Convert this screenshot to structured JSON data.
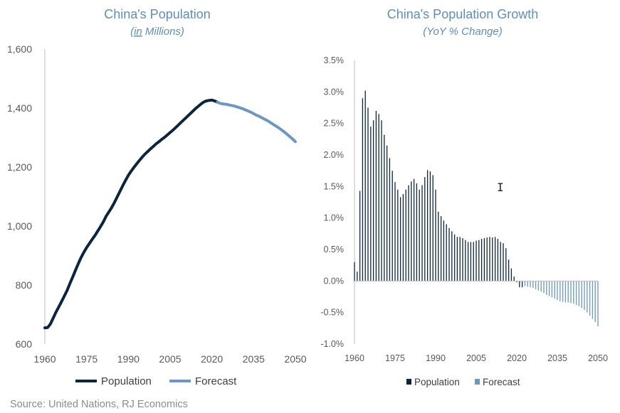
{
  "colors": {
    "population": "#0b2540",
    "forecast": "#6a97c4",
    "title": "#5b8fc0"
  },
  "source": "Source: United Nations, RJ Economics",
  "chart_data": [
    {
      "type": "line",
      "title": "China's Population",
      "subtitle_prefix": "(",
      "subtitle_underlined": "in",
      "subtitle_suffix": " Millions)",
      "xlabel": "",
      "ylabel": "",
      "xlim": [
        1960,
        2050
      ],
      "ylim": [
        600,
        1600
      ],
      "x_ticks": [
        "1960",
        "1975",
        "1990",
        "2005",
        "2020",
        "2035",
        "2050"
      ],
      "y_ticks": [
        "600",
        "800",
        "1,000",
        "1,200",
        "1,400",
        "1,600"
      ],
      "legend": [
        "Population",
        "Forecast"
      ],
      "legend_position": "bottom",
      "grid": false,
      "series": [
        {
          "name": "Population",
          "x": [
            1960,
            1961,
            1962,
            1963,
            1964,
            1965,
            1966,
            1967,
            1968,
            1969,
            1970,
            1971,
            1972,
            1973,
            1974,
            1975,
            1976,
            1977,
            1978,
            1979,
            1980,
            1981,
            1982,
            1983,
            1984,
            1985,
            1986,
            1987,
            1988,
            1989,
            1990,
            1991,
            1992,
            1993,
            1994,
            1995,
            1996,
            1997,
            1998,
            1999,
            2000,
            2001,
            2002,
            2003,
            2004,
            2005,
            2006,
            2007,
            2008,
            2009,
            2010,
            2011,
            2012,
            2013,
            2014,
            2015,
            2016,
            2017,
            2018,
            2019,
            2020,
            2021,
            2022
          ],
          "y": [
            655,
            656,
            668,
            688,
            708,
            726,
            744,
            763,
            782,
            805,
            827,
            850,
            872,
            893,
            911,
            927,
            941,
            955,
            968,
            983,
            998,
            1014,
            1033,
            1048,
            1063,
            1080,
            1099,
            1118,
            1137,
            1155,
            1172,
            1186,
            1199,
            1211,
            1223,
            1234,
            1244,
            1253,
            1262,
            1270,
            1279,
            1286,
            1294,
            1301,
            1309,
            1317,
            1325,
            1334,
            1343,
            1352,
            1361,
            1370,
            1379,
            1388,
            1397,
            1405,
            1413,
            1420,
            1424,
            1426,
            1427,
            1424,
            1420
          ]
        },
        {
          "name": "Forecast",
          "x": [
            2022,
            2023,
            2024,
            2025,
            2026,
            2027,
            2028,
            2029,
            2030,
            2031,
            2032,
            2033,
            2034,
            2035,
            2036,
            2037,
            2038,
            2039,
            2040,
            2041,
            2042,
            2043,
            2044,
            2045,
            2046,
            2047,
            2048,
            2049,
            2050
          ],
          "y": [
            1420,
            1416,
            1414,
            1413,
            1411,
            1409,
            1407,
            1404,
            1401,
            1398,
            1394,
            1390,
            1386,
            1381,
            1376,
            1372,
            1367,
            1362,
            1357,
            1351,
            1345,
            1339,
            1333,
            1326,
            1319,
            1311,
            1303,
            1295,
            1286
          ]
        }
      ]
    },
    {
      "type": "bar",
      "title": "China's Population Growth",
      "subtitle": "(YoY % Change)",
      "xlabel": "",
      "ylabel": "",
      "xlim": [
        1960,
        2050
      ],
      "ylim": [
        -1.0,
        3.5
      ],
      "x_ticks": [
        "1960",
        "1975",
        "1990",
        "2005",
        "2020",
        "2035",
        "2050"
      ],
      "y_ticks": [
        "-1.0%",
        "-0.5%",
        "0.0%",
        "0.5%",
        "1.0%",
        "1.5%",
        "2.0%",
        "2.5%",
        "3.0%",
        "3.5%"
      ],
      "legend": [
        "Population",
        "Forecast"
      ],
      "legend_position": "bottom",
      "grid": false,
      "series": [
        {
          "name": "Population",
          "x": [
            1960,
            1961,
            1962,
            1963,
            1964,
            1965,
            1966,
            1967,
            1968,
            1969,
            1970,
            1971,
            1972,
            1973,
            1974,
            1975,
            1976,
            1977,
            1978,
            1979,
            1980,
            1981,
            1982,
            1983,
            1984,
            1985,
            1986,
            1987,
            1988,
            1989,
            1990,
            1991,
            1992,
            1993,
            1994,
            1995,
            1996,
            1997,
            1998,
            1999,
            2000,
            2001,
            2002,
            2003,
            2004,
            2005,
            2006,
            2007,
            2008,
            2009,
            2010,
            2011,
            2012,
            2013,
            2014,
            2015,
            2016,
            2017,
            2018,
            2019,
            2020,
            2021,
            2022
          ],
          "y": [
            0.3,
            0.15,
            1.43,
            2.9,
            3.02,
            2.75,
            2.45,
            2.55,
            2.7,
            2.65,
            2.55,
            2.32,
            2.15,
            1.95,
            1.75,
            1.57,
            1.45,
            1.33,
            1.38,
            1.45,
            1.52,
            1.58,
            1.62,
            1.55,
            1.45,
            1.52,
            1.65,
            1.76,
            1.74,
            1.68,
            1.45,
            1.1,
            1.03,
            0.96,
            0.9,
            0.84,
            0.79,
            0.74,
            0.7,
            0.7,
            0.68,
            0.65,
            0.62,
            0.62,
            0.62,
            0.64,
            0.65,
            0.67,
            0.68,
            0.69,
            0.7,
            0.69,
            0.7,
            0.67,
            0.62,
            0.6,
            0.52,
            0.34,
            0.2,
            0.07,
            -0.02,
            -0.1,
            -0.1
          ]
        },
        {
          "name": "Forecast",
          "x": [
            2023,
            2024,
            2025,
            2026,
            2027,
            2028,
            2029,
            2030,
            2031,
            2032,
            2033,
            2034,
            2035,
            2036,
            2037,
            2038,
            2039,
            2040,
            2041,
            2042,
            2043,
            2044,
            2045,
            2046,
            2047,
            2048,
            2049,
            2050
          ],
          "y": [
            -0.08,
            -0.09,
            -0.1,
            -0.11,
            -0.13,
            -0.15,
            -0.17,
            -0.19,
            -0.22,
            -0.24,
            -0.26,
            -0.28,
            -0.3,
            -0.32,
            -0.33,
            -0.34,
            -0.34,
            -0.35,
            -0.36,
            -0.38,
            -0.4,
            -0.43,
            -0.46,
            -0.5,
            -0.55,
            -0.6,
            -0.65,
            -0.72
          ]
        }
      ]
    }
  ]
}
